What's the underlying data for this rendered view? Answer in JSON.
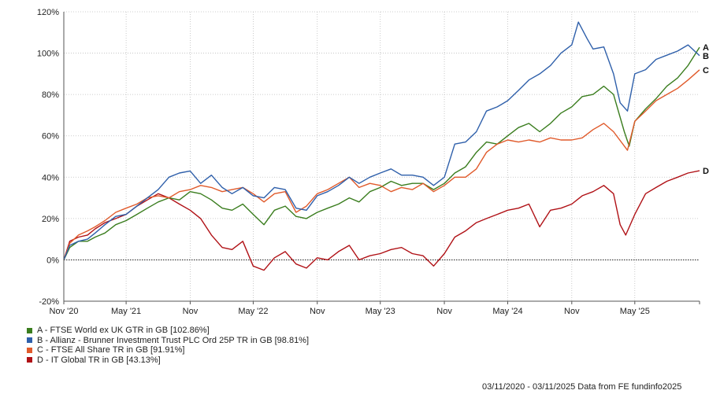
{
  "chart_data": {
    "type": "line",
    "ylim": [
      -20,
      120
    ],
    "y_ticks": [
      -20,
      0,
      20,
      40,
      60,
      80,
      100,
      120
    ],
    "y_tick_format": "%",
    "x_range": [
      "2020-11-03",
      "2025-11-03"
    ],
    "x_tick_labels": [
      {
        "date": "2020-11-03",
        "label": "Nov '20"
      },
      {
        "date": "2021-05-01",
        "label": "May '21"
      },
      {
        "date": "2021-11-01",
        "label": "Nov"
      },
      {
        "date": "2022-05-01",
        "label": "May '22"
      },
      {
        "date": "2022-11-01",
        "label": "Nov"
      },
      {
        "date": "2023-05-01",
        "label": "May '23"
      },
      {
        "date": "2023-11-01",
        "label": "Nov"
      },
      {
        "date": "2024-05-01",
        "label": "May '24"
      },
      {
        "date": "2024-11-01",
        "label": "Nov"
      },
      {
        "date": "2025-05-01",
        "label": "May '25"
      }
    ],
    "grid": true,
    "zero_line": "dotted",
    "legend_placement": "bottom-left",
    "series": [
      {
        "key": "A",
        "name": "A - FTSE World ex UK GTR in GB [102.86%]",
        "color": "#3a7d1e",
        "points": [
          [
            "2020-11-03",
            0
          ],
          [
            "2020-11-20",
            6
          ],
          [
            "2020-12-15",
            9
          ],
          [
            "2021-01-10",
            9
          ],
          [
            "2021-02-01",
            11
          ],
          [
            "2021-03-01",
            13
          ],
          [
            "2021-04-01",
            17
          ],
          [
            "2021-05-01",
            19
          ],
          [
            "2021-06-01",
            22
          ],
          [
            "2021-07-01",
            25
          ],
          [
            "2021-08-01",
            28
          ],
          [
            "2021-09-01",
            30
          ],
          [
            "2021-10-01",
            29
          ],
          [
            "2021-11-01",
            33
          ],
          [
            "2021-12-01",
            32
          ],
          [
            "2022-01-01",
            29
          ],
          [
            "2022-02-01",
            25
          ],
          [
            "2022-03-01",
            24
          ],
          [
            "2022-04-01",
            27
          ],
          [
            "2022-05-01",
            22
          ],
          [
            "2022-06-01",
            17
          ],
          [
            "2022-07-01",
            24
          ],
          [
            "2022-08-01",
            26
          ],
          [
            "2022-09-01",
            21
          ],
          [
            "2022-10-01",
            20
          ],
          [
            "2022-11-01",
            23
          ],
          [
            "2022-12-01",
            25
          ],
          [
            "2023-01-01",
            27
          ],
          [
            "2023-02-01",
            30
          ],
          [
            "2023-03-01",
            28
          ],
          [
            "2023-04-01",
            33
          ],
          [
            "2023-05-01",
            35
          ],
          [
            "2023-06-01",
            38
          ],
          [
            "2023-07-01",
            36
          ],
          [
            "2023-08-01",
            37
          ],
          [
            "2023-09-01",
            37
          ],
          [
            "2023-10-01",
            34
          ],
          [
            "2023-11-01",
            37
          ],
          [
            "2023-12-01",
            42
          ],
          [
            "2024-01-01",
            45
          ],
          [
            "2024-02-01",
            52
          ],
          [
            "2024-03-01",
            57
          ],
          [
            "2024-04-01",
            56
          ],
          [
            "2024-05-01",
            60
          ],
          [
            "2024-06-01",
            64
          ],
          [
            "2024-07-01",
            66
          ],
          [
            "2024-08-01",
            62
          ],
          [
            "2024-09-01",
            66
          ],
          [
            "2024-10-01",
            71
          ],
          [
            "2024-11-01",
            74
          ],
          [
            "2024-12-01",
            79
          ],
          [
            "2025-01-01",
            80
          ],
          [
            "2025-02-01",
            84
          ],
          [
            "2025-03-01",
            80
          ],
          [
            "2025-04-01",
            62
          ],
          [
            "2025-04-15",
            55
          ],
          [
            "2025-05-01",
            67
          ],
          [
            "2025-06-01",
            73
          ],
          [
            "2025-07-01",
            78
          ],
          [
            "2025-08-01",
            84
          ],
          [
            "2025-09-01",
            88
          ],
          [
            "2025-10-01",
            94
          ],
          [
            "2025-11-03",
            102.86
          ]
        ]
      },
      {
        "key": "B",
        "name": "B - Allianz - Brunner Investment Trust PLC Ord 25P TR in GB [98.81%]",
        "color": "#2e5faa",
        "points": [
          [
            "2020-11-03",
            0
          ],
          [
            "2020-11-20",
            7
          ],
          [
            "2020-12-15",
            9
          ],
          [
            "2021-01-10",
            10
          ],
          [
            "2021-02-01",
            13
          ],
          [
            "2021-03-01",
            17
          ],
          [
            "2021-04-01",
            21
          ],
          [
            "2021-05-01",
            22
          ],
          [
            "2021-06-01",
            26
          ],
          [
            "2021-07-01",
            30
          ],
          [
            "2021-08-01",
            34
          ],
          [
            "2021-09-01",
            40
          ],
          [
            "2021-10-01",
            42
          ],
          [
            "2021-11-01",
            43
          ],
          [
            "2021-12-01",
            37
          ],
          [
            "2022-01-01",
            41
          ],
          [
            "2022-02-01",
            35
          ],
          [
            "2022-03-01",
            32
          ],
          [
            "2022-04-01",
            35
          ],
          [
            "2022-05-01",
            31
          ],
          [
            "2022-06-01",
            30
          ],
          [
            "2022-07-01",
            35
          ],
          [
            "2022-08-01",
            34
          ],
          [
            "2022-09-01",
            25
          ],
          [
            "2022-10-01",
            24
          ],
          [
            "2022-11-01",
            31
          ],
          [
            "2022-12-01",
            33
          ],
          [
            "2023-01-01",
            36
          ],
          [
            "2023-02-01",
            40
          ],
          [
            "2023-03-01",
            37
          ],
          [
            "2023-04-01",
            40
          ],
          [
            "2023-05-01",
            42
          ],
          [
            "2023-06-01",
            44
          ],
          [
            "2023-07-01",
            41
          ],
          [
            "2023-08-01",
            41
          ],
          [
            "2023-09-01",
            40
          ],
          [
            "2023-10-01",
            36
          ],
          [
            "2023-11-01",
            40
          ],
          [
            "2023-12-01",
            56
          ],
          [
            "2024-01-01",
            57
          ],
          [
            "2024-02-01",
            62
          ],
          [
            "2024-03-01",
            72
          ],
          [
            "2024-04-01",
            74
          ],
          [
            "2024-05-01",
            77
          ],
          [
            "2024-06-01",
            82
          ],
          [
            "2024-07-01",
            87
          ],
          [
            "2024-08-01",
            90
          ],
          [
            "2024-09-01",
            94
          ],
          [
            "2024-10-01",
            100
          ],
          [
            "2024-11-01",
            104
          ],
          [
            "2024-11-20",
            115
          ],
          [
            "2024-12-15",
            107
          ],
          [
            "2025-01-01",
            102
          ],
          [
            "2025-02-01",
            103
          ],
          [
            "2025-03-01",
            90
          ],
          [
            "2025-03-20",
            76
          ],
          [
            "2025-04-10",
            72
          ],
          [
            "2025-05-01",
            90
          ],
          [
            "2025-06-01",
            92
          ],
          [
            "2025-07-01",
            97
          ],
          [
            "2025-08-01",
            99
          ],
          [
            "2025-09-01",
            101
          ],
          [
            "2025-10-01",
            104
          ],
          [
            "2025-11-03",
            98.81
          ]
        ]
      },
      {
        "key": "C",
        "name": "C - FTSE All Share TR in GB [91.91%]",
        "color": "#e05a2b",
        "points": [
          [
            "2020-11-03",
            0
          ],
          [
            "2020-11-20",
            8
          ],
          [
            "2020-12-15",
            12
          ],
          [
            "2021-01-10",
            14
          ],
          [
            "2021-02-01",
            16
          ],
          [
            "2021-03-01",
            19
          ],
          [
            "2021-04-01",
            23
          ],
          [
            "2021-05-01",
            25
          ],
          [
            "2021-06-01",
            27
          ],
          [
            "2021-07-01",
            30
          ],
          [
            "2021-08-01",
            31
          ],
          [
            "2021-09-01",
            30
          ],
          [
            "2021-10-01",
            33
          ],
          [
            "2021-11-01",
            34
          ],
          [
            "2021-12-01",
            36
          ],
          [
            "2022-01-01",
            35
          ],
          [
            "2022-02-01",
            33
          ],
          [
            "2022-03-01",
            34
          ],
          [
            "2022-04-01",
            35
          ],
          [
            "2022-05-01",
            32
          ],
          [
            "2022-06-01",
            28
          ],
          [
            "2022-07-01",
            32
          ],
          [
            "2022-08-01",
            33
          ],
          [
            "2022-09-01",
            23
          ],
          [
            "2022-10-01",
            26
          ],
          [
            "2022-11-01",
            32
          ],
          [
            "2022-12-01",
            34
          ],
          [
            "2023-01-01",
            37
          ],
          [
            "2023-02-01",
            40
          ],
          [
            "2023-03-01",
            35
          ],
          [
            "2023-04-01",
            37
          ],
          [
            "2023-05-01",
            36
          ],
          [
            "2023-06-01",
            33
          ],
          [
            "2023-07-01",
            35
          ],
          [
            "2023-08-01",
            34
          ],
          [
            "2023-09-01",
            37
          ],
          [
            "2023-10-01",
            33
          ],
          [
            "2023-11-01",
            36
          ],
          [
            "2023-12-01",
            40
          ],
          [
            "2024-01-01",
            40
          ],
          [
            "2024-02-01",
            44
          ],
          [
            "2024-03-01",
            52
          ],
          [
            "2024-04-01",
            56
          ],
          [
            "2024-05-01",
            58
          ],
          [
            "2024-06-01",
            57
          ],
          [
            "2024-07-01",
            58
          ],
          [
            "2024-08-01",
            57
          ],
          [
            "2024-09-01",
            59
          ],
          [
            "2024-10-01",
            58
          ],
          [
            "2024-11-01",
            58
          ],
          [
            "2024-12-01",
            59
          ],
          [
            "2025-01-01",
            63
          ],
          [
            "2025-02-01",
            66
          ],
          [
            "2025-03-01",
            62
          ],
          [
            "2025-04-10",
            53
          ],
          [
            "2025-05-01",
            67
          ],
          [
            "2025-06-01",
            72
          ],
          [
            "2025-07-01",
            77
          ],
          [
            "2025-08-01",
            80
          ],
          [
            "2025-09-01",
            83
          ],
          [
            "2025-10-01",
            87
          ],
          [
            "2025-11-03",
            91.91
          ]
        ]
      },
      {
        "key": "D",
        "name": "D - IT Global TR in GB [43.13%]",
        "color": "#b01116",
        "points": [
          [
            "2020-11-03",
            0
          ],
          [
            "2020-11-20",
            9
          ],
          [
            "2020-12-15",
            11
          ],
          [
            "2021-01-10",
            12
          ],
          [
            "2021-02-01",
            15
          ],
          [
            "2021-03-01",
            18
          ],
          [
            "2021-04-01",
            20
          ],
          [
            "2021-05-01",
            22
          ],
          [
            "2021-06-01",
            26
          ],
          [
            "2021-07-01",
            29
          ],
          [
            "2021-08-01",
            32
          ],
          [
            "2021-09-01",
            30
          ],
          [
            "2021-10-01",
            27
          ],
          [
            "2021-11-01",
            24
          ],
          [
            "2021-12-01",
            20
          ],
          [
            "2022-01-01",
            12
          ],
          [
            "2022-02-01",
            6
          ],
          [
            "2022-03-01",
            5
          ],
          [
            "2022-04-01",
            9
          ],
          [
            "2022-05-01",
            -3
          ],
          [
            "2022-06-01",
            -5
          ],
          [
            "2022-07-01",
            1
          ],
          [
            "2022-08-01",
            4
          ],
          [
            "2022-09-01",
            -2
          ],
          [
            "2022-10-01",
            -4
          ],
          [
            "2022-11-01",
            1
          ],
          [
            "2022-12-01",
            0
          ],
          [
            "2023-01-01",
            4
          ],
          [
            "2023-02-01",
            7
          ],
          [
            "2023-03-01",
            0
          ],
          [
            "2023-04-01",
            2
          ],
          [
            "2023-05-01",
            3
          ],
          [
            "2023-06-01",
            5
          ],
          [
            "2023-07-01",
            6
          ],
          [
            "2023-08-01",
            3
          ],
          [
            "2023-09-01",
            2
          ],
          [
            "2023-10-01",
            -3
          ],
          [
            "2023-11-01",
            3
          ],
          [
            "2023-12-01",
            11
          ],
          [
            "2024-01-01",
            14
          ],
          [
            "2024-02-01",
            18
          ],
          [
            "2024-03-01",
            20
          ],
          [
            "2024-04-01",
            22
          ],
          [
            "2024-05-01",
            24
          ],
          [
            "2024-06-01",
            25
          ],
          [
            "2024-07-01",
            27
          ],
          [
            "2024-08-01",
            16
          ],
          [
            "2024-09-01",
            24
          ],
          [
            "2024-10-01",
            25
          ],
          [
            "2024-11-01",
            27
          ],
          [
            "2024-12-01",
            31
          ],
          [
            "2025-01-01",
            33
          ],
          [
            "2025-02-01",
            36
          ],
          [
            "2025-03-01",
            32
          ],
          [
            "2025-03-20",
            17
          ],
          [
            "2025-04-05",
            12
          ],
          [
            "2025-05-01",
            22
          ],
          [
            "2025-06-01",
            32
          ],
          [
            "2025-07-01",
            35
          ],
          [
            "2025-08-01",
            38
          ],
          [
            "2025-09-01",
            40
          ],
          [
            "2025-10-01",
            42
          ],
          [
            "2025-11-03",
            43.13
          ]
        ]
      }
    ]
  },
  "footer": {
    "source": "03/11/2020 - 03/11/2025 Data from FE fundinfo2025"
  }
}
